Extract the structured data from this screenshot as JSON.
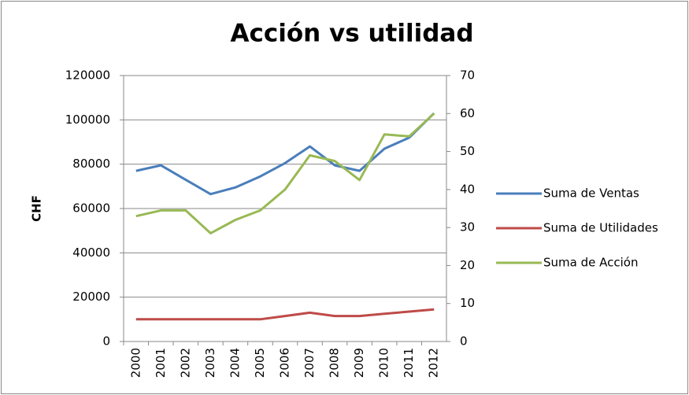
{
  "chart_data": {
    "type": "line",
    "title": "Acción vs utilidad",
    "y_label": "CHF",
    "categories": [
      "2000",
      "2001",
      "2002",
      "2003",
      "2004",
      "2005",
      "2006",
      "2007",
      "2008",
      "2009",
      "2010",
      "2011",
      "2012"
    ],
    "series": [
      {
        "name": "Suma de Ventas",
        "color": "#4a7ebb",
        "values": [
          77000,
          79500,
          73000,
          66500,
          69500,
          74500,
          80500,
          88000,
          79500,
          77000,
          87000,
          92000,
          103000
        ]
      },
      {
        "name": "Suma de Utilidades",
        "color": "#be4b48",
        "values": [
          10000,
          10000,
          10000,
          10000,
          10000,
          10000,
          11500,
          13000,
          11500,
          11500,
          12500,
          13500,
          14500
        ]
      },
      {
        "name": "Suma de Acción",
        "color": "#98b954",
        "axis": "y2",
        "values": [
          33,
          34.5,
          34.5,
          28.5,
          32,
          34.5,
          40,
          49,
          47.5,
          42.5,
          54.5,
          54,
          60
        ]
      }
    ],
    "ylim": [
      0,
      120000
    ],
    "yticks": [
      0,
      20000,
      40000,
      60000,
      80000,
      100000,
      120000
    ],
    "y2lim": [
      0,
      70
    ],
    "y2ticks": [
      0,
      10,
      20,
      30,
      40,
      50,
      60,
      70
    ],
    "grid": true,
    "legend": "right"
  }
}
